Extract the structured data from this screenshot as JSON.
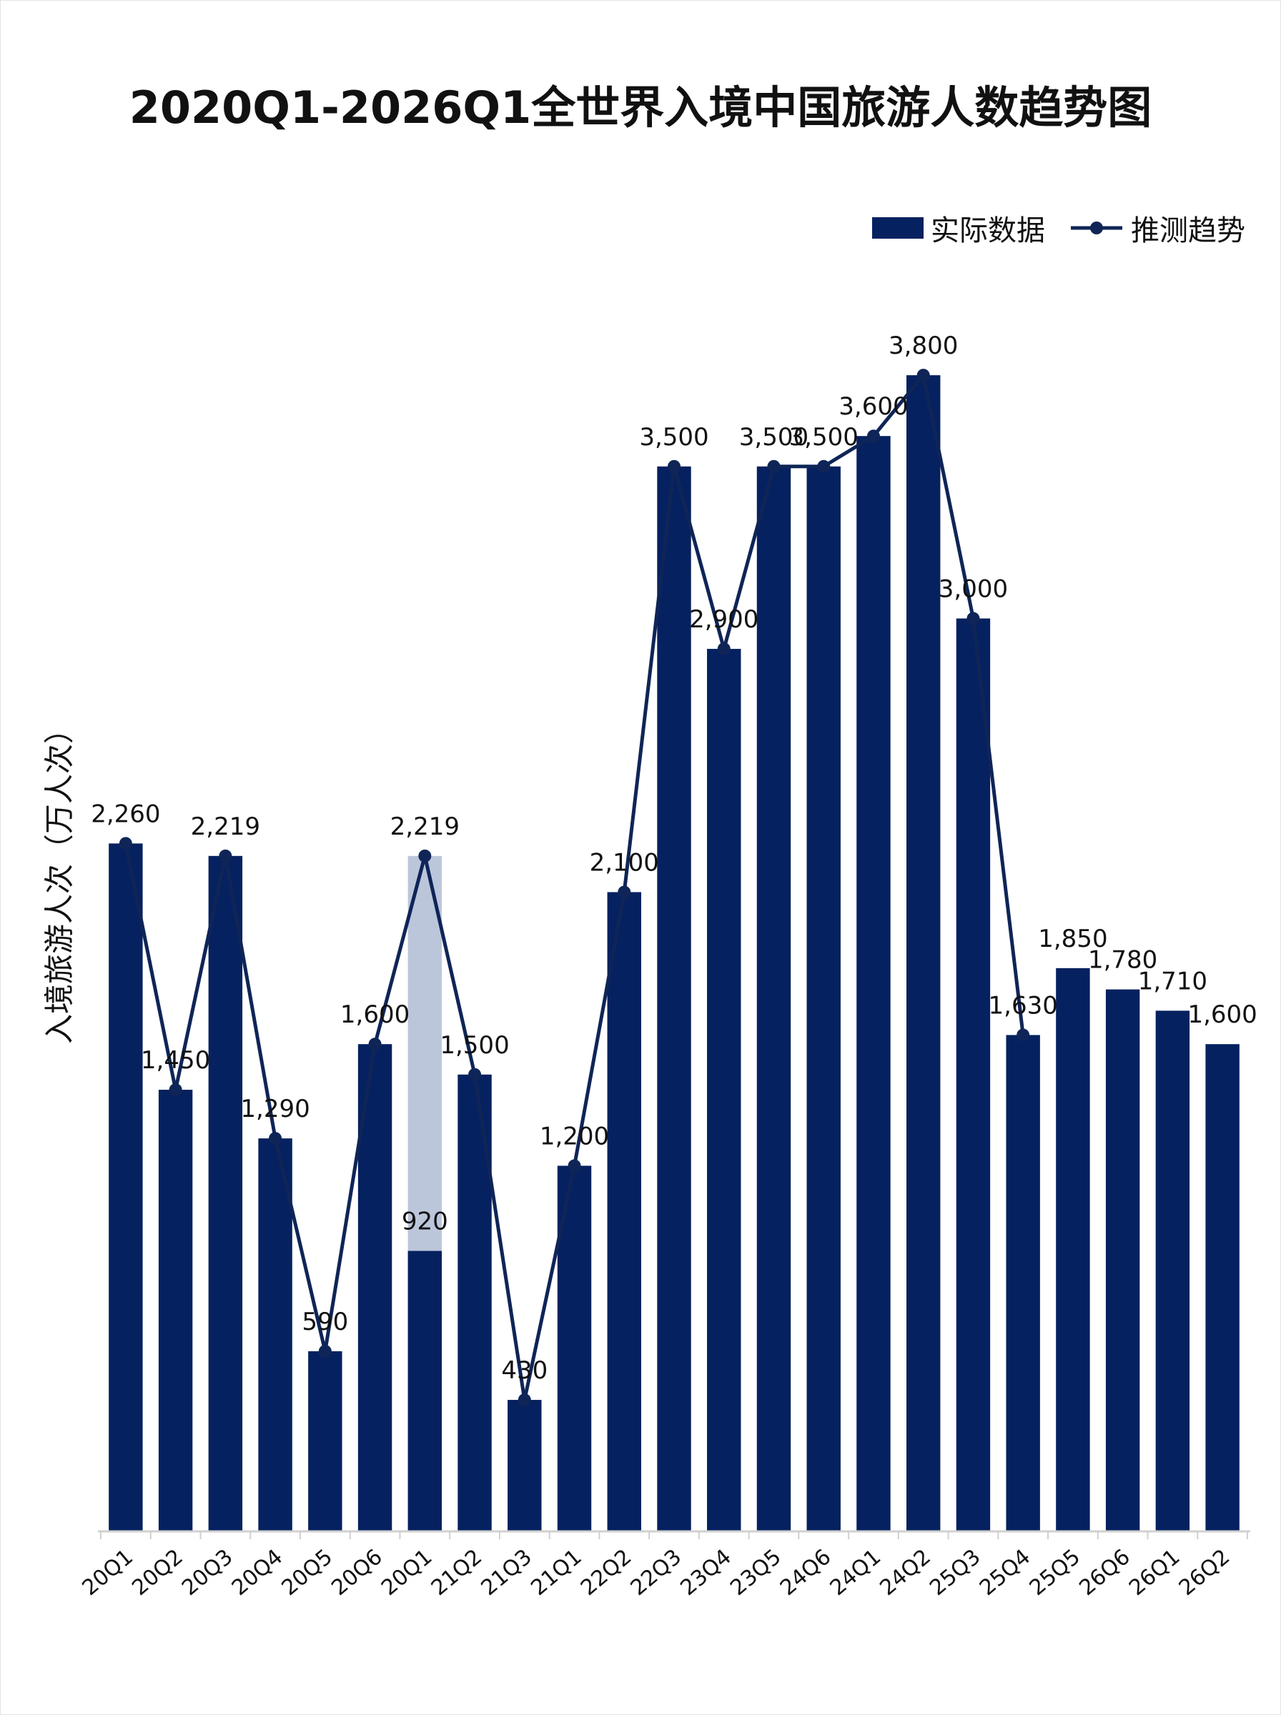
{
  "colors": {
    "bar": "#06215f",
    "bar_light": "#bcc6db",
    "line": "#0f2557",
    "axis": "#d0d0d0",
    "text": "#111111"
  },
  "chart_data": {
    "type": "bar",
    "title": "2020Q1-2026Q1全世界入境中国旅游人数趋势图",
    "xlabel": "",
    "ylabel": "入境旅游人次（万人次）",
    "ylim": [
      0,
      4000
    ],
    "grid": false,
    "legend_position": "top-right",
    "categories": [
      "20Q1",
      "20Q2",
      "20Q3",
      "20Q4",
      "20Q5",
      "20Q6",
      "20Q1",
      "21Q2",
      "21Q3",
      "21Q1",
      "22Q2",
      "22Q3",
      "23Q4",
      "23Q5",
      "24Q6",
      "24Q1",
      "24Q2",
      "25Q3",
      "25Q4",
      "25Q5",
      "26Q6",
      "26Q1",
      "26Q2"
    ],
    "series": [
      {
        "name": "实际数据",
        "kind": "bar",
        "values": [
          2260,
          1450,
          2219,
          1290,
          590,
          1600,
          920,
          1500,
          430,
          1200,
          2100,
          3500,
          2900,
          3500,
          3500,
          3600,
          3800,
          3000,
          1630,
          1850,
          1780,
          1710,
          1600
        ],
        "value_labels": [
          "2,260",
          "1,450",
          "2,219",
          "1,290",
          "590",
          "1,600",
          "920",
          "1,500",
          "430",
          "1,200",
          "2,100",
          "3,500",
          "2,900",
          "3,500",
          "3,500",
          "3,600",
          "3,800",
          "3,000",
          "1,630",
          "1,850",
          "1,780",
          "1,710",
          "1,600"
        ]
      },
      {
        "name": "推测趋势",
        "kind": "line",
        "values": [
          2260,
          1450,
          2219,
          1290,
          590,
          1600,
          2219,
          1500,
          430,
          1200,
          2100,
          3500,
          2900,
          3500,
          3500,
          3600,
          3800,
          3000,
          1630,
          null,
          null,
          null,
          null
        ]
      }
    ],
    "highlight": {
      "index": 6,
      "value": 2219,
      "value_label": "2,219",
      "color": "#bcc6db"
    }
  }
}
